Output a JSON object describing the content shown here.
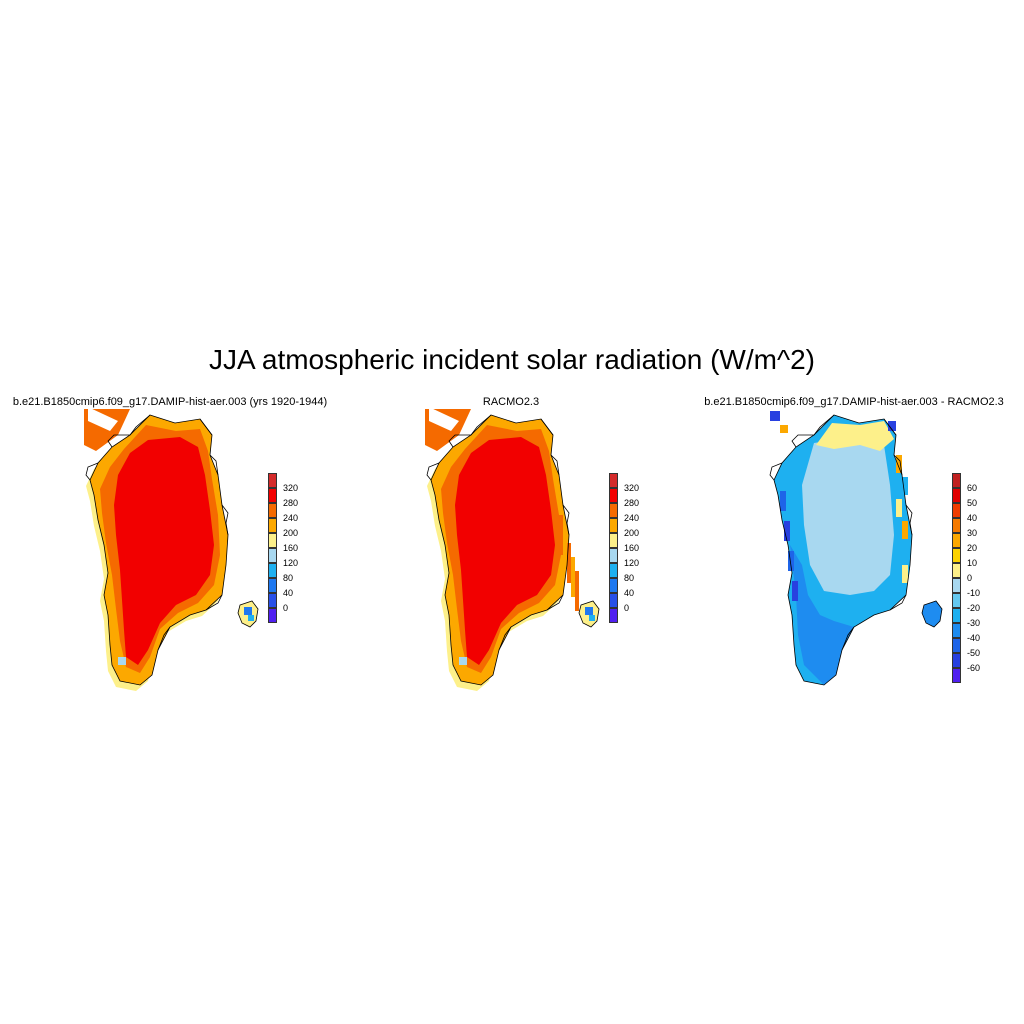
{
  "figure_title": "JJA atmospheric incident solar radiation (W/m^2)",
  "panels": [
    {
      "title": "b.e21.B1850cmip6.f09_g17.DAMIP-hist-aer.003 (yrs 1920-1944)",
      "kind": "absolute",
      "colorbar": {
        "labels": [
          "320",
          "280",
          "240",
          "200",
          "160",
          "120",
          "80",
          "40",
          "0"
        ],
        "colors": [
          "#d42a2a",
          "#f20000",
          "#f56a00",
          "#fca800",
          "#fdf08a",
          "#a8d8f0",
          "#1eb0f0",
          "#1e78f0",
          "#2850e8",
          "#5020f0"
        ]
      }
    },
    {
      "title": "RACMO2.3",
      "kind": "absolute",
      "colorbar": {
        "labels": [
          "320",
          "280",
          "240",
          "200",
          "160",
          "120",
          "80",
          "40",
          "0"
        ],
        "colors": [
          "#d42a2a",
          "#f20000",
          "#f56a00",
          "#fca800",
          "#fdf08a",
          "#a8d8f0",
          "#1eb0f0",
          "#1e78f0",
          "#2850e8",
          "#5020f0"
        ]
      }
    },
    {
      "title": "b.e21.B1850cmip6.f09_g17.DAMIP-hist-aer.003 - RACMO2.3",
      "kind": "difference",
      "colorbar": {
        "labels": [
          "60",
          "50",
          "40",
          "30",
          "20",
          "10",
          "0",
          "-10",
          "-20",
          "-30",
          "-40",
          "-50",
          "-60"
        ],
        "colors": [
          "#c02020",
          "#e00000",
          "#f03c00",
          "#f57a00",
          "#fca800",
          "#fcd200",
          "#fdf08a",
          "#a8d8f0",
          "#64c8f0",
          "#1eb0f0",
          "#1e8cf0",
          "#1e64e8",
          "#2840e0",
          "#5020f0"
        ]
      }
    }
  ]
}
